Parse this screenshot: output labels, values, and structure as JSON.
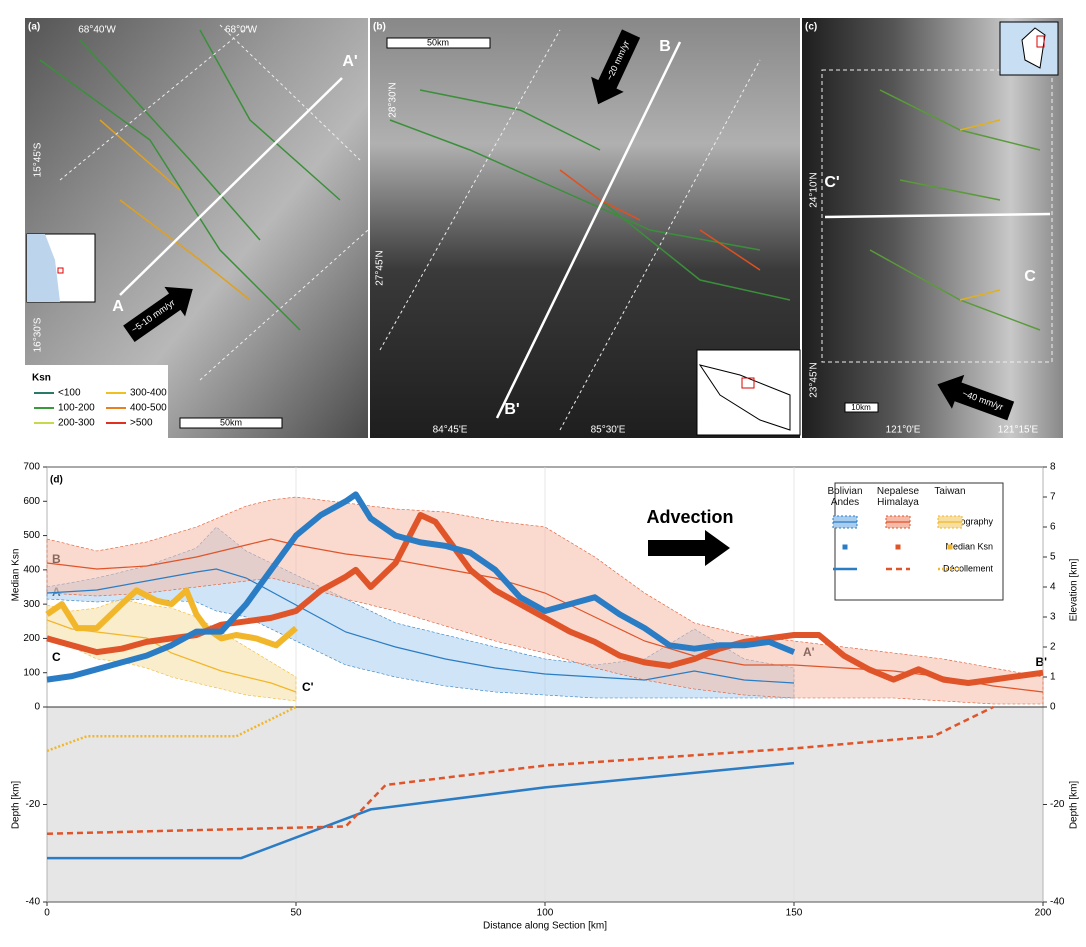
{
  "maps": [
    {
      "label": "(a)",
      "coords": [
        "68°40'W",
        "68°0'W",
        "15°45'S",
        "16°30'S"
      ],
      "profile_start": "A",
      "profile_end": "A'",
      "velocity": "~5-10 mm/yr",
      "scale": "50km",
      "legend_title": "Ksn",
      "legend_items": [
        "<100",
        "100-200",
        "200-300",
        "300-400",
        "400-500",
        ">500"
      ]
    },
    {
      "label": "(b)",
      "coords": [
        "28°30'N",
        "27°45'N",
        "84°45'E",
        "85°30'E"
      ],
      "profile_start": "B",
      "profile_end": "B'",
      "velocity": "~20 mm/yr",
      "scale": "50km"
    },
    {
      "label": "(c)",
      "coords": [
        "24°10'N",
        "23°45'N",
        "121°0'E",
        "121°15'E"
      ],
      "profile_start": "C",
      "profile_end": "C'",
      "velocity": "~40 mm/yr",
      "scale": "10km"
    }
  ],
  "chart_data": {
    "type": "line",
    "panel_label": "(d)",
    "annotation": "Advection",
    "xlabel": "Distance along Section [km]",
    "ylabel": "Median Ksn",
    "y2label": "Elevation [km]",
    "depth_label": "Depth [km]",
    "xlim": [
      0,
      200
    ],
    "xticks": [
      0,
      50,
      100,
      150,
      200
    ],
    "ylim": [
      0,
      700
    ],
    "yticks": [
      0,
      100,
      200,
      300,
      400,
      500,
      600,
      700
    ],
    "y2lim": [
      0,
      8
    ],
    "y2ticks": [
      0,
      1,
      2,
      3,
      4,
      5,
      6,
      7,
      8
    ],
    "depth_lim": [
      -40,
      0
    ],
    "depth_ticks": [
      -20,
      -40
    ],
    "legend_rows": [
      "Topography",
      "Median Ksn",
      "Décollement"
    ],
    "section_start_labels": [
      "A",
      "B",
      "C"
    ],
    "section_end_labels": [
      "A'",
      "B'",
      "C'"
    ],
    "series": [
      {
        "name": "Bolivian Andes",
        "color": "#2a7cc4",
        "band_color": "#a8cdee",
        "decollement_style": "solid",
        "topo_x": [
          0,
          10,
          20,
          30,
          34,
          40,
          50,
          60,
          70,
          80,
          90,
          100,
          110,
          120,
          130,
          140,
          150
        ],
        "topo": [
          3.8,
          3.9,
          4.2,
          4.5,
          4.6,
          4.3,
          3.4,
          2.5,
          2.0,
          1.6,
          1.3,
          1.1,
          1.0,
          0.9,
          1.2,
          0.9,
          0.8
        ],
        "topo_upper": [
          4.0,
          4.3,
          4.7,
          5.3,
          6.0,
          5.2,
          4.4,
          3.6,
          2.8,
          2.4,
          2.0,
          1.6,
          1.4,
          1.6,
          2.6,
          1.6,
          1.3
        ],
        "topo_lower": [
          3.6,
          3.5,
          3.6,
          3.5,
          3.2,
          3.0,
          2.2,
          1.4,
          1.0,
          0.7,
          0.5,
          0.4,
          0.3,
          0.3,
          0.3,
          0.3,
          0.3
        ],
        "ksn_x": [
          0,
          5,
          10,
          15,
          20,
          25,
          30,
          35,
          40,
          45,
          50,
          55,
          60,
          62,
          65,
          70,
          75,
          80,
          85,
          90,
          95,
          100,
          105,
          110,
          115,
          120,
          125,
          130,
          135,
          140,
          145,
          150
        ],
        "ksn": [
          80,
          90,
          110,
          130,
          150,
          180,
          220,
          220,
          300,
          400,
          500,
          560,
          600,
          620,
          550,
          500,
          480,
          470,
          450,
          400,
          320,
          280,
          300,
          320,
          270,
          230,
          180,
          170,
          180,
          180,
          190,
          160
        ],
        "decol_x": [
          0,
          39,
          65,
          100,
          135,
          150
        ],
        "decol": [
          -31,
          -31,
          -21,
          -16.5,
          -13,
          -11.5
        ]
      },
      {
        "name": "Nepalese Himalaya",
        "color": "#e0542a",
        "band_color": "#f6bba8",
        "decollement_style": "dashed",
        "topo_x": [
          0,
          10,
          20,
          30,
          40,
          45,
          50,
          60,
          70,
          80,
          90,
          100,
          110,
          120,
          130,
          140,
          150,
          160,
          170,
          180,
          190,
          200
        ],
        "topo": [
          4.8,
          4.6,
          4.7,
          5.0,
          5.4,
          5.6,
          5.4,
          5.1,
          4.9,
          4.6,
          4.3,
          3.8,
          3.0,
          2.2,
          1.7,
          1.4,
          1.4,
          1.3,
          1.2,
          1.0,
          0.7,
          0.5
        ],
        "topo_upper": [
          5.6,
          5.2,
          5.5,
          6.0,
          6.7,
          6.9,
          7.0,
          6.8,
          6.6,
          6.5,
          6.2,
          6.0,
          5.0,
          3.8,
          2.8,
          2.4,
          2.2,
          2.0,
          1.8,
          1.6,
          1.3,
          1.0
        ],
        "topo_lower": [
          3.8,
          3.7,
          3.8,
          4.0,
          4.2,
          4.3,
          4.1,
          3.6,
          3.2,
          2.7,
          2.2,
          1.8,
          1.3,
          0.9,
          0.6,
          0.4,
          0.3,
          0.3,
          0.3,
          0.2,
          0.1,
          0.1
        ],
        "ksn_x": [
          0,
          5,
          10,
          15,
          20,
          25,
          30,
          35,
          40,
          45,
          50,
          55,
          60,
          62,
          65,
          70,
          75,
          78,
          80,
          85,
          90,
          95,
          100,
          105,
          110,
          115,
          120,
          125,
          130,
          135,
          140,
          145,
          150,
          155,
          160,
          165,
          170,
          175,
          180,
          185,
          190,
          195,
          200
        ],
        "ksn": [
          200,
          180,
          160,
          170,
          190,
          200,
          210,
          240,
          250,
          260,
          280,
          340,
          380,
          400,
          350,
          420,
          560,
          540,
          500,
          400,
          340,
          300,
          260,
          220,
          190,
          150,
          130,
          120,
          140,
          170,
          190,
          200,
          210,
          210,
          150,
          110,
          80,
          110,
          80,
          70,
          80,
          90,
          100
        ],
        "decol_x": [
          0,
          60,
          68,
          100,
          150,
          178,
          190
        ],
        "decol": [
          -26,
          -24.5,
          -16,
          -12,
          -8.5,
          -6,
          0
        ]
      },
      {
        "name": "Taiwan",
        "color": "#f2b62a",
        "band_color": "#f6dfa0",
        "decollement_style": "dotted",
        "topo_x": [
          0,
          5,
          10,
          15,
          20,
          25,
          30,
          35,
          40,
          45,
          50
        ],
        "topo": [
          2.9,
          2.6,
          2.5,
          2.4,
          2.3,
          1.8,
          1.5,
          1.2,
          1.0,
          0.8,
          0.5
        ],
        "topo_upper": [
          3.4,
          3.2,
          3.3,
          3.6,
          3.4,
          3.3,
          3.0,
          2.5,
          2.0,
          1.5,
          1.0
        ],
        "topo_lower": [
          2.4,
          2.0,
          1.6,
          1.5,
          1.3,
          1.0,
          0.8,
          0.6,
          0.4,
          0.3,
          0.2
        ],
        "ksn_x": [
          0,
          3,
          6,
          10,
          15,
          18,
          22,
          25,
          28,
          30,
          32,
          35,
          38,
          42,
          46,
          50
        ],
        "ksn": [
          270,
          300,
          230,
          230,
          300,
          340,
          310,
          300,
          340,
          270,
          230,
          200,
          210,
          200,
          180,
          230
        ],
        "decol_x": [
          0,
          8,
          38,
          50
        ],
        "decol": [
          -9,
          -6,
          -6,
          0
        ]
      }
    ]
  }
}
